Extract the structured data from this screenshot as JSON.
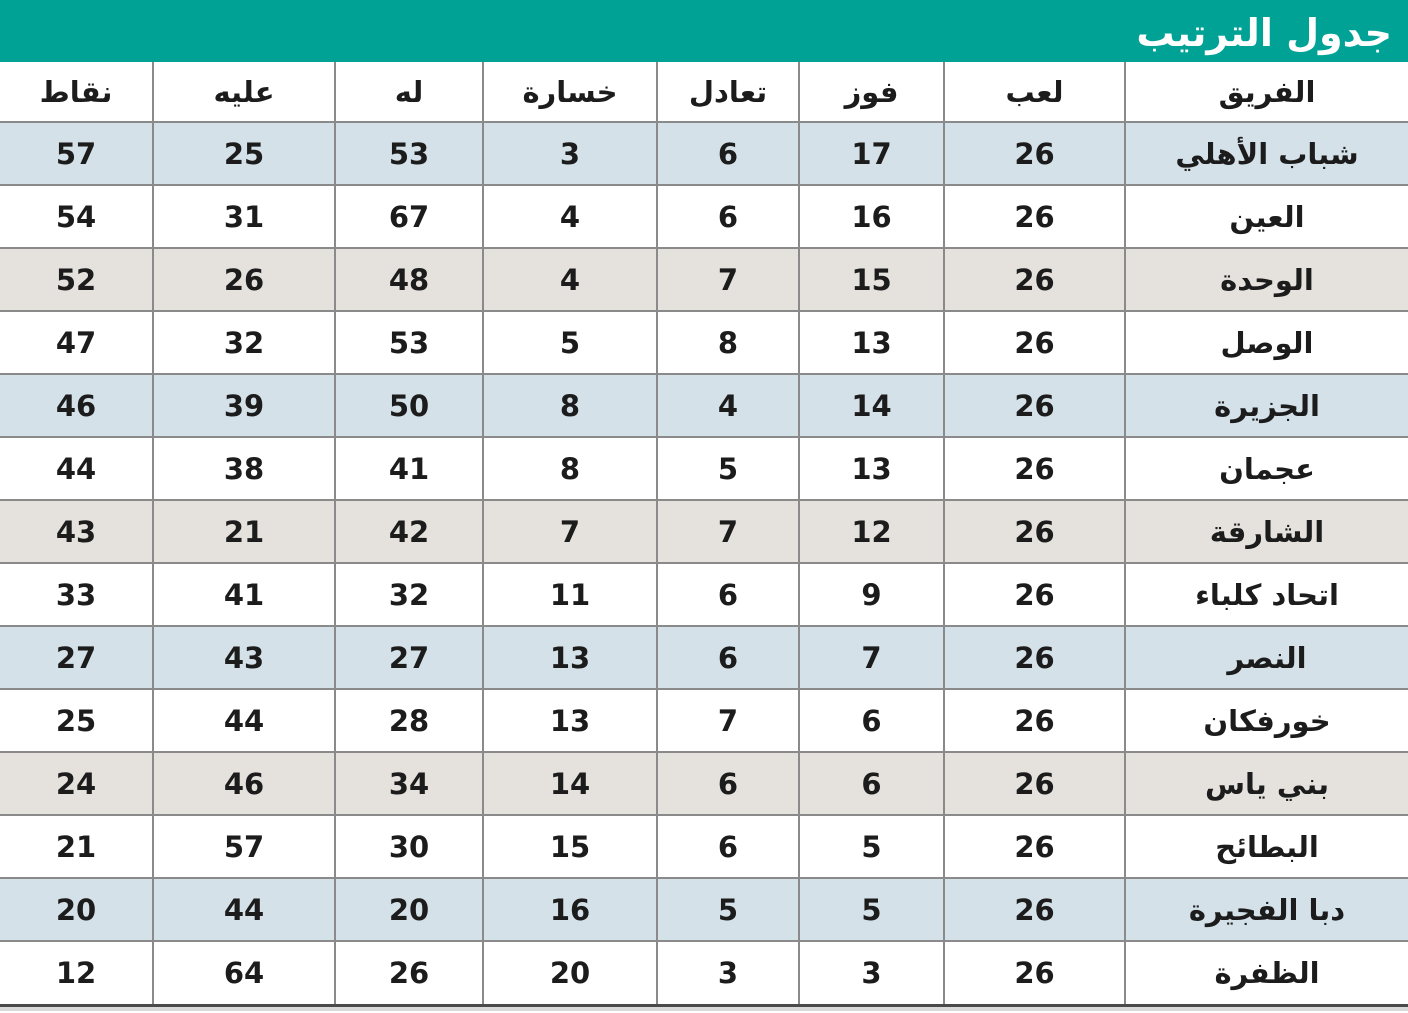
{
  "title": "جدول الترتيب",
  "colors": {
    "header_bar_bg": "#00A296",
    "title_text": "#FFFFFF",
    "row_blue": "#D4E1E9",
    "row_gray": "#E5E2DE",
    "row_white": "#FFFFFF",
    "cell_border": "#8A8A8A",
    "cell_text": "#1C1C1C"
  },
  "chart_data": {
    "type": "table",
    "title": "جدول الترتيب",
    "direction": "rtl",
    "columns": [
      {
        "key": "team",
        "label": "الفريق"
      },
      {
        "key": "played",
        "label": "لعب"
      },
      {
        "key": "wins",
        "label": "فوز"
      },
      {
        "key": "draws",
        "label": "تعادل"
      },
      {
        "key": "losses",
        "label": "خسارة"
      },
      {
        "key": "goals_for",
        "label": "له"
      },
      {
        "key": "goals_against",
        "label": "عليه"
      },
      {
        "key": "points",
        "label": "نقاط"
      }
    ],
    "rows": [
      {
        "team": "شباب الأهلي",
        "played": 26,
        "wins": 17,
        "draws": 6,
        "losses": 3,
        "goals_for": 53,
        "goals_against": 25,
        "points": 57
      },
      {
        "team": "العين",
        "played": 26,
        "wins": 16,
        "draws": 6,
        "losses": 4,
        "goals_for": 67,
        "goals_against": 31,
        "points": 54
      },
      {
        "team": "الوحدة",
        "played": 26,
        "wins": 15,
        "draws": 7,
        "losses": 4,
        "goals_for": 48,
        "goals_against": 26,
        "points": 52
      },
      {
        "team": "الوصل",
        "played": 26,
        "wins": 13,
        "draws": 8,
        "losses": 5,
        "goals_for": 53,
        "goals_against": 32,
        "points": 47
      },
      {
        "team": "الجزيرة",
        "played": 26,
        "wins": 14,
        "draws": 4,
        "losses": 8,
        "goals_for": 50,
        "goals_against": 39,
        "points": 46
      },
      {
        "team": "عجمان",
        "played": 26,
        "wins": 13,
        "draws": 5,
        "losses": 8,
        "goals_for": 41,
        "goals_against": 38,
        "points": 44
      },
      {
        "team": "الشارقة",
        "played": 26,
        "wins": 12,
        "draws": 7,
        "losses": 7,
        "goals_for": 42,
        "goals_against": 21,
        "points": 43
      },
      {
        "team": "اتحاد كلباء",
        "played": 26,
        "wins": 9,
        "draws": 6,
        "losses": 11,
        "goals_for": 32,
        "goals_against": 41,
        "points": 33
      },
      {
        "team": "النصر",
        "played": 26,
        "wins": 7,
        "draws": 6,
        "losses": 13,
        "goals_for": 27,
        "goals_against": 43,
        "points": 27
      },
      {
        "team": "خورفكان",
        "played": 26,
        "wins": 6,
        "draws": 7,
        "losses": 13,
        "goals_for": 28,
        "goals_against": 44,
        "points": 25
      },
      {
        "team": "بني ياس",
        "played": 26,
        "wins": 6,
        "draws": 6,
        "losses": 14,
        "goals_for": 34,
        "goals_against": 46,
        "points": 24
      },
      {
        "team": "البطائح",
        "played": 26,
        "wins": 5,
        "draws": 6,
        "losses": 15,
        "goals_for": 30,
        "goals_against": 57,
        "points": 21
      },
      {
        "team": "دبا الفجيرة",
        "played": 26,
        "wins": 5,
        "draws": 5,
        "losses": 16,
        "goals_for": 20,
        "goals_against": 44,
        "points": 20
      },
      {
        "team": "الظفرة",
        "played": 26,
        "wins": 3,
        "draws": 3,
        "losses": 20,
        "goals_for": 26,
        "goals_against": 64,
        "points": 12
      }
    ]
  }
}
